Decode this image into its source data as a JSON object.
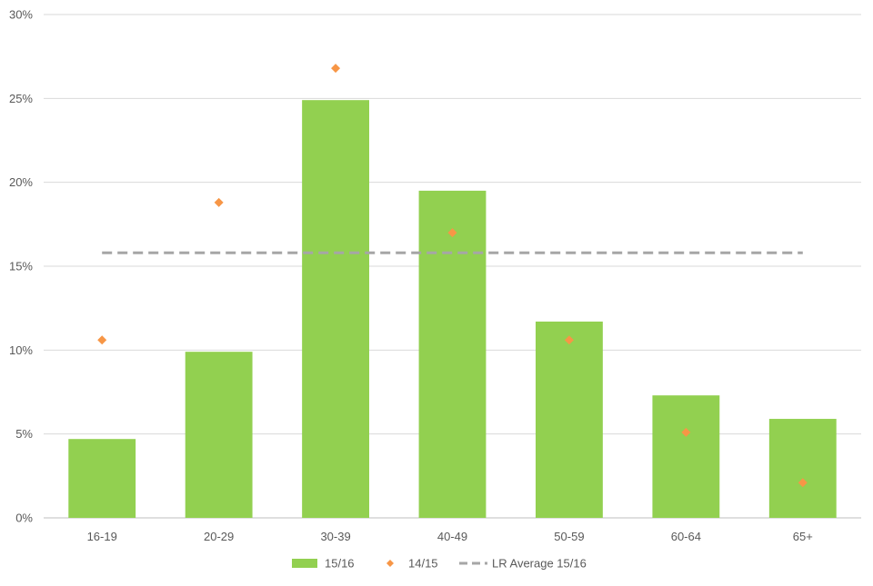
{
  "chart_data": {
    "type": "bar",
    "categories": [
      "16-19",
      "20-29",
      "30-39",
      "40-49",
      "50-59",
      "60-64",
      "65+"
    ],
    "series": [
      {
        "name": "15/16",
        "kind": "bar",
        "color": "#92D050",
        "values": [
          4.7,
          9.9,
          24.9,
          19.5,
          11.7,
          7.3,
          5.9
        ]
      },
      {
        "name": "14/15",
        "kind": "scatter",
        "marker": "diamond",
        "color": "#F79646",
        "values": [
          10.6,
          18.8,
          26.8,
          17.0,
          10.6,
          5.1,
          2.1
        ]
      },
      {
        "name": "LR Average 15/16",
        "kind": "line",
        "style": "dashed",
        "color": "#A6A6A6",
        "values": [
          15.8,
          15.8,
          15.8,
          15.8,
          15.8,
          15.8,
          15.8
        ]
      }
    ],
    "yaxis": {
      "min": 0,
      "max": 30,
      "ticks": [
        0,
        5,
        10,
        15,
        20,
        25,
        30
      ],
      "tick_labels": [
        "0%",
        "5%",
        "10%",
        "15%",
        "20%",
        "25%",
        "30%"
      ],
      "unit": "%"
    },
    "title": "",
    "xlabel": "",
    "ylabel": "",
    "grid": true,
    "legend_position": "bottom-center",
    "gridline_color": "#D9D9D9"
  }
}
